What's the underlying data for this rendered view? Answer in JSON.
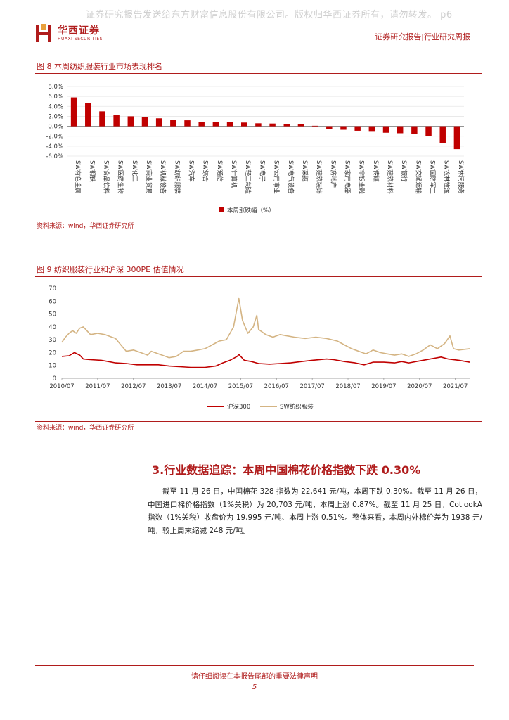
{
  "watermark": "证券研究报告发送给东方财富信息股份有限公司。版权归华西证券所有，请勿转发。 p6",
  "header": {
    "logo_cn": "华西证券",
    "logo_en": "HUAXI SECURITIES",
    "report_type": "证券研究报告|行业研究周报"
  },
  "figure8": {
    "title": "图 8 本周纺织服装行业市场表现排名",
    "source": "资料来源：wind，华西证券研究所"
  },
  "figure9": {
    "title": "图 9 纺织服装行业和沪深 300PE 估值情况",
    "source": "资料来源：wind，华西证券研究所"
  },
  "chart_data": [
    {
      "type": "bar",
      "title": "本周纺织服装行业市场表现排名",
      "categories": [
        "SW有色金属",
        "SW钢铁",
        "SW食品饮料",
        "SW医药生物",
        "SW化工",
        "SW商业贸易",
        "SW机械设备",
        "SW纺织服装",
        "SW汽车",
        "SW综合",
        "SW通信",
        "SW计算机",
        "SW轻工制造",
        "SW电子",
        "SW公用事业",
        "SW电气设备",
        "SW采掘",
        "SW建筑装饰",
        "SW房地产",
        "SW家用电器",
        "SW非银金融",
        "SW传媒",
        "SW建筑材料",
        "SW银行",
        "SW交通运输",
        "SW国防军工",
        "SW农林牧渔",
        "SW休闲服务"
      ],
      "series": [
        {
          "name": "本周涨跌幅（%）",
          "values": [
            5.8,
            4.7,
            3.0,
            2.2,
            2.0,
            1.8,
            1.6,
            1.3,
            1.2,
            0.9,
            0.85,
            0.8,
            0.75,
            0.6,
            0.55,
            0.5,
            0.4,
            0.1,
            -0.6,
            -0.7,
            -0.9,
            -1.1,
            -1.3,
            -1.4,
            -1.6,
            -2.0,
            -3.4,
            -4.6
          ]
        }
      ],
      "yticks": [
        "8.0%",
        "6.0%",
        "4.0%",
        "2.0%",
        "0.0%",
        "-2.0%",
        "-4.0%",
        "-6.0%"
      ],
      "ylim": [
        -6,
        8
      ],
      "legend": "bottom",
      "color": "#c00000"
    },
    {
      "type": "line",
      "title": "纺织服装行业和沪深300PE估值情况",
      "x_ticks": [
        "2010/07",
        "2011/07",
        "2012/07",
        "2013/07",
        "2014/07",
        "2015/07",
        "2016/07",
        "2017/07",
        "2018/07",
        "2019/07",
        "2020/07",
        "2021/07"
      ],
      "y_ticks": [
        "70",
        "60",
        "50",
        "40",
        "30",
        "20",
        "10",
        "0"
      ],
      "ylim": [
        0,
        70
      ],
      "x_range_years": [
        2010.5,
        2021.9
      ],
      "legend": "bottom",
      "series": [
        {
          "name": "沪深300",
          "color": "#c00000",
          "points": [
            [
              2010.5,
              17
            ],
            [
              2010.7,
              17.5
            ],
            [
              2010.85,
              20
            ],
            [
              2011.0,
              18
            ],
            [
              2011.1,
              15
            ],
            [
              2011.3,
              14.5
            ],
            [
              2011.6,
              14
            ],
            [
              2011.8,
              13
            ],
            [
              2012.0,
              12
            ],
            [
              2012.3,
              11.5
            ],
            [
              2012.6,
              10.5
            ],
            [
              2012.9,
              10.5
            ],
            [
              2013.2,
              10.5
            ],
            [
              2013.5,
              9.5
            ],
            [
              2013.8,
              9
            ],
            [
              2014.1,
              8.5
            ],
            [
              2014.5,
              8.5
            ],
            [
              2014.8,
              9.5
            ],
            [
              2015.0,
              12
            ],
            [
              2015.2,
              14
            ],
            [
              2015.4,
              17
            ],
            [
              2015.45,
              18.5
            ],
            [
              2015.6,
              14
            ],
            [
              2015.8,
              13
            ],
            [
              2016.0,
              11.5
            ],
            [
              2016.3,
              11
            ],
            [
              2016.6,
              11.5
            ],
            [
              2016.9,
              12
            ],
            [
              2017.2,
              13
            ],
            [
              2017.5,
              14
            ],
            [
              2017.9,
              15
            ],
            [
              2018.1,
              14.5
            ],
            [
              2018.4,
              13
            ],
            [
              2018.7,
              12
            ],
            [
              2018.95,
              10.5
            ],
            [
              2019.2,
              12.5
            ],
            [
              2019.5,
              12.5
            ],
            [
              2019.8,
              12
            ],
            [
              2020.0,
              13
            ],
            [
              2020.2,
              12
            ],
            [
              2020.5,
              13.5
            ],
            [
              2020.8,
              15
            ],
            [
              2021.1,
              16.5
            ],
            [
              2021.3,
              15
            ],
            [
              2021.6,
              14
            ],
            [
              2021.9,
              12.5
            ]
          ]
        },
        {
          "name": "SW纺织服装",
          "color": "#d4b483",
          "points": [
            [
              2010.5,
              28
            ],
            [
              2010.6,
              32
            ],
            [
              2010.7,
              35
            ],
            [
              2010.8,
              37
            ],
            [
              2010.9,
              35
            ],
            [
              2011.0,
              39
            ],
            [
              2011.1,
              40
            ],
            [
              2011.2,
              37
            ],
            [
              2011.3,
              34
            ],
            [
              2011.5,
              35
            ],
            [
              2011.7,
              34
            ],
            [
              2011.9,
              32
            ],
            [
              2012.0,
              31
            ],
            [
              2012.15,
              26
            ],
            [
              2012.3,
              21
            ],
            [
              2012.5,
              22
            ],
            [
              2012.7,
              20
            ],
            [
              2012.9,
              18
            ],
            [
              2013.0,
              21
            ],
            [
              2013.2,
              19
            ],
            [
              2013.5,
              16
            ],
            [
              2013.7,
              17
            ],
            [
              2013.9,
              21
            ],
            [
              2014.1,
              21
            ],
            [
              2014.3,
              22
            ],
            [
              2014.5,
              23
            ],
            [
              2014.7,
              26
            ],
            [
              2014.9,
              29
            ],
            [
              2015.1,
              30
            ],
            [
              2015.3,
              40
            ],
            [
              2015.4,
              55
            ],
            [
              2015.45,
              62
            ],
            [
              2015.55,
              45
            ],
            [
              2015.7,
              35
            ],
            [
              2015.85,
              40
            ],
            [
              2015.95,
              49
            ],
            [
              2016.0,
              38
            ],
            [
              2016.2,
              34
            ],
            [
              2016.4,
              32
            ],
            [
              2016.6,
              34
            ],
            [
              2016.8,
              33
            ],
            [
              2017.0,
              32
            ],
            [
              2017.3,
              31
            ],
            [
              2017.6,
              32
            ],
            [
              2017.9,
              31
            ],
            [
              2018.2,
              29
            ],
            [
              2018.4,
              26
            ],
            [
              2018.6,
              23
            ],
            [
              2018.8,
              21
            ],
            [
              2019.0,
              19
            ],
            [
              2019.2,
              22
            ],
            [
              2019.4,
              20
            ],
            [
              2019.6,
              19
            ],
            [
              2019.8,
              18
            ],
            [
              2020.0,
              19
            ],
            [
              2020.2,
              17
            ],
            [
              2020.4,
              19
            ],
            [
              2020.6,
              22
            ],
            [
              2020.8,
              26
            ],
            [
              2021.0,
              23
            ],
            [
              2021.2,
              27
            ],
            [
              2021.35,
              33
            ],
            [
              2021.45,
              23
            ],
            [
              2021.6,
              22
            ],
            [
              2021.9,
              23
            ]
          ]
        }
      ]
    }
  ],
  "section": {
    "heading": "3.行业数据追踪：本周中国棉花价格指数下跌 0.30%",
    "paragraph": "截至 11 月 26 日，中国棉花 328 指数为 22,641 元/吨，本周下跌 0.30%。截至 11 月 26 日，中国进口棉价格指数（1%关税）为 20,703 元/吨，本周上涨 0.87%。截至 11 月 25 日，CotlookA 指数（1%关税）收盘价为 19,995 元/吨、本周上涨 0.51%。整体来看，本周内外棉价差为 1938 元/吨，较上周末缩减 248 元/吨。"
  },
  "footer": {
    "notice": "请仔细阅读在本报告尾部的重要法律声明",
    "page": "5"
  }
}
